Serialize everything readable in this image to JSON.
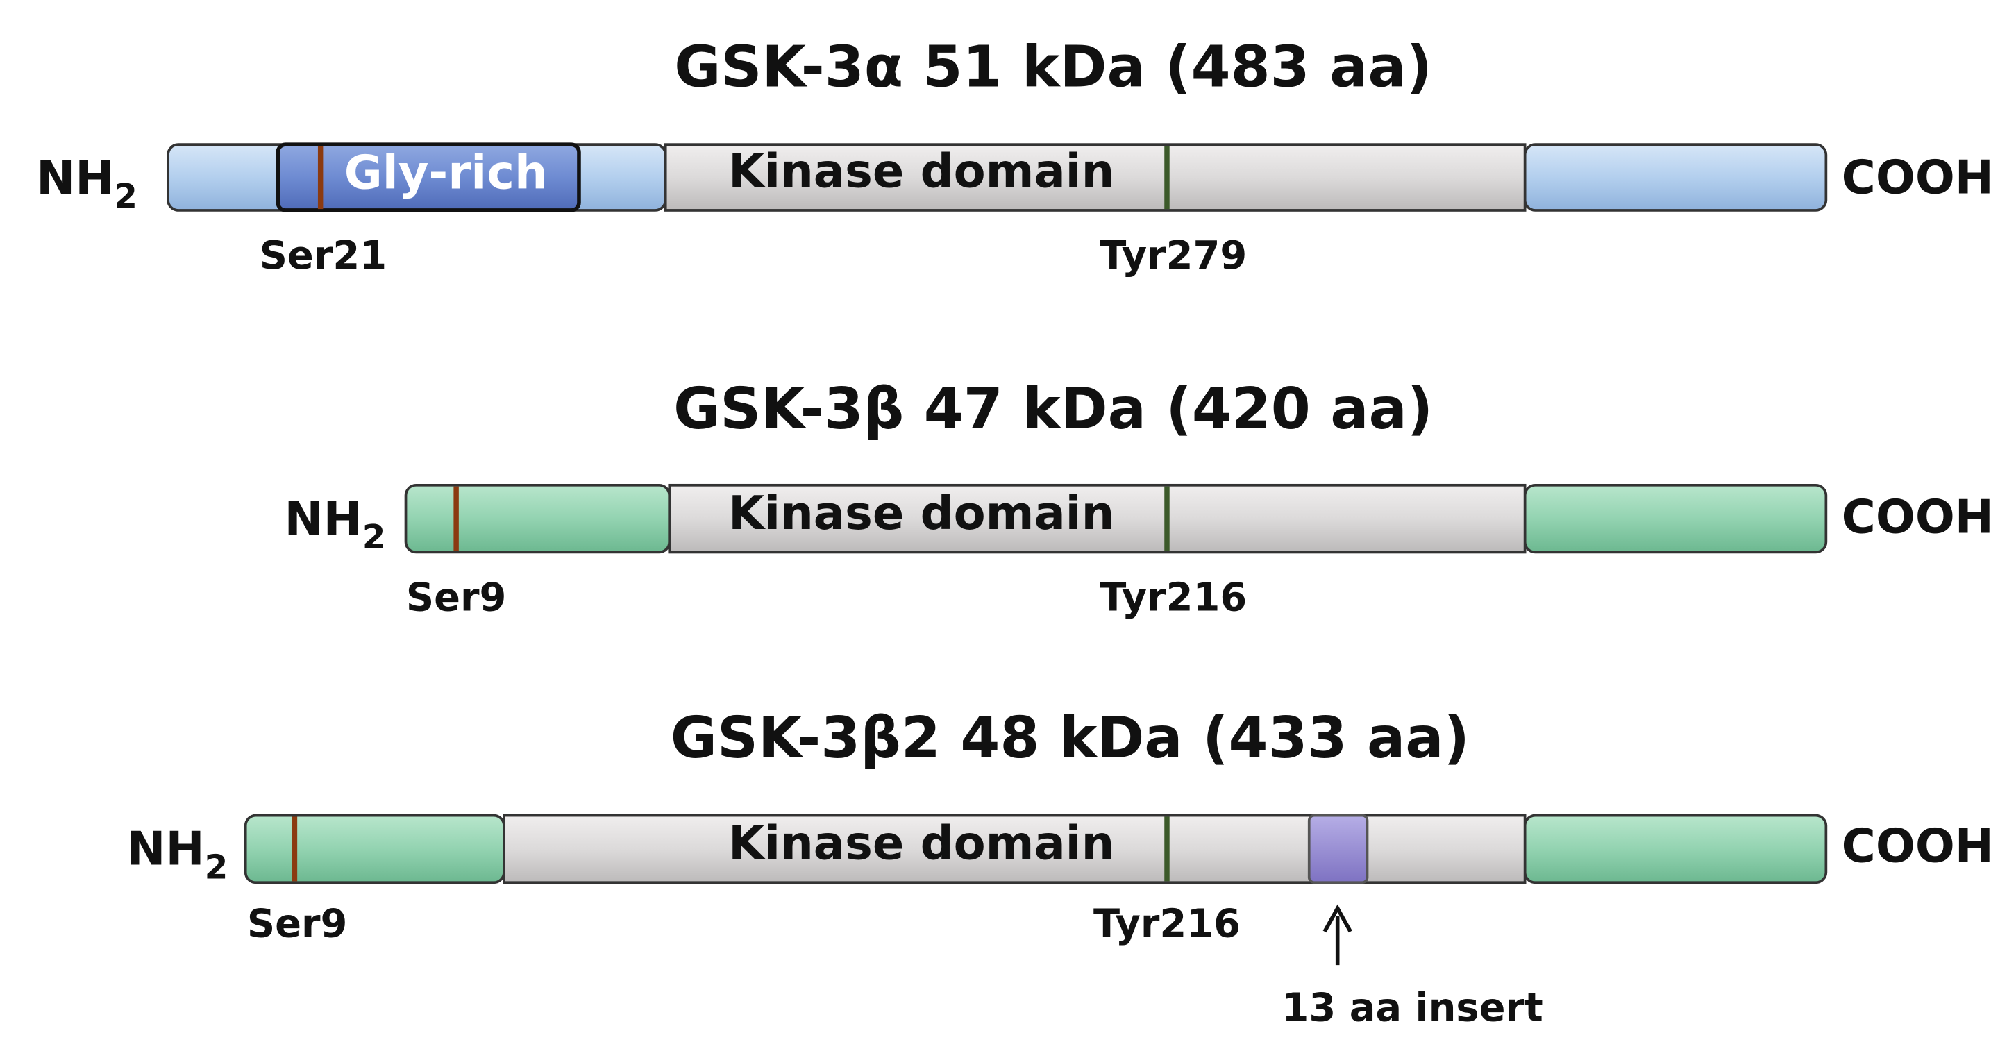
{
  "proteins": [
    {
      "title": "GSK-3α 51 kDa (483 aa)",
      "n_term": {
        "text": "NH",
        "subscript": "2"
      },
      "c_term": "COOH",
      "domains": [
        "Gly-rich",
        "Kinase domain"
      ],
      "sites": [
        "Ser21",
        "Tyr279"
      ]
    },
    {
      "title": "GSK-3β 47 kDa (420 aa)",
      "n_term": {
        "text": "NH",
        "subscript": "2"
      },
      "c_term": "COOH",
      "domains": [
        "Kinase domain"
      ],
      "sites": [
        "Ser9",
        "Tyr216"
      ]
    },
    {
      "title": "GSK-3β2 48 kDa (433 aa)",
      "n_term": {
        "text": "NH",
        "subscript": "2"
      },
      "c_term": "COOH",
      "domains": [
        "Kinase domain"
      ],
      "sites": [
        "Ser9",
        "Tyr216"
      ],
      "insert": "13 aa insert"
    }
  ]
}
